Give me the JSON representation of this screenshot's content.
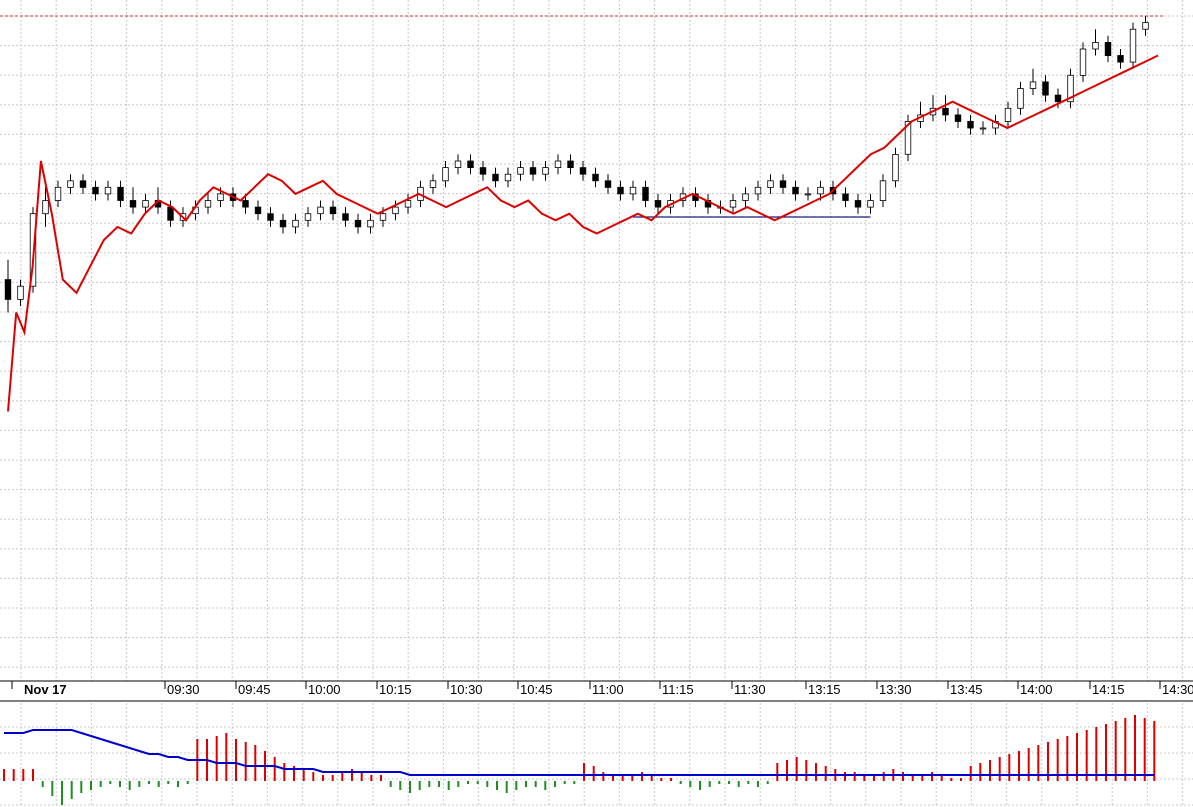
{
  "chart_data": {
    "type": "candlestick",
    "grid": true,
    "colors": {
      "candle_up_fill": "#ffffff",
      "candle_down_fill": "#000000",
      "candle_outline": "#000000",
      "overlay_line": "#dd0000",
      "support_line": "#1a1a80",
      "high_marker": "#cc3333",
      "volume_up": "#dd0000",
      "volume_down": "#228b22",
      "volume_avg": "#0000cc",
      "grid": "#c8c8c8"
    },
    "x_tick_labels": [
      "Nov 17",
      "09:30",
      "09:45",
      "10:00",
      "10:15",
      "10:30",
      "10:45",
      "11:00",
      "11:15",
      "11:30",
      "13:15",
      "13:30",
      "13:45",
      "14:00",
      "14:15",
      "14:30"
    ],
    "price_range": [
      0,
      100
    ],
    "price_candles": [
      [
        0,
        60,
        63,
        55,
        57
      ],
      [
        1,
        57,
        60,
        56,
        59
      ],
      [
        2,
        59,
        71,
        58,
        70
      ],
      [
        3,
        70,
        74,
        68,
        72
      ],
      [
        4,
        72,
        75,
        71,
        74
      ],
      [
        5,
        74,
        76,
        73,
        75
      ],
      [
        6,
        75,
        76,
        73,
        74
      ],
      [
        7,
        74,
        75,
        72,
        73
      ],
      [
        8,
        73,
        75,
        72,
        74
      ],
      [
        9,
        74,
        75,
        71,
        72
      ],
      [
        10,
        72,
        74,
        70,
        71
      ],
      [
        11,
        71,
        73,
        70,
        72
      ],
      [
        12,
        72,
        74,
        70,
        71
      ],
      [
        13,
        71,
        72,
        68,
        69
      ],
      [
        14,
        69,
        71,
        68,
        70
      ],
      [
        15,
        70,
        72,
        69,
        71
      ],
      [
        16,
        71,
        73,
        70,
        72
      ],
      [
        17,
        72,
        74,
        71,
        73
      ],
      [
        18,
        73,
        74,
        71,
        72
      ],
      [
        19,
        72,
        73,
        70,
        71
      ],
      [
        20,
        71,
        72,
        69,
        70
      ],
      [
        21,
        70,
        71,
        68,
        69
      ],
      [
        22,
        69,
        70,
        67,
        68
      ],
      [
        23,
        68,
        70,
        67,
        69
      ],
      [
        24,
        69,
        71,
        68,
        70
      ],
      [
        25,
        70,
        72,
        69,
        71
      ],
      [
        26,
        71,
        72,
        69,
        70
      ],
      [
        27,
        70,
        71,
        68,
        69
      ],
      [
        28,
        69,
        70,
        67,
        68
      ],
      [
        29,
        68,
        70,
        67,
        69
      ],
      [
        30,
        69,
        71,
        68,
        70
      ],
      [
        31,
        70,
        72,
        69,
        71
      ],
      [
        32,
        71,
        73,
        70,
        72
      ],
      [
        33,
        72,
        75,
        71,
        74
      ],
      [
        34,
        74,
        76,
        73,
        75
      ],
      [
        35,
        75,
        78,
        74,
        77
      ],
      [
        36,
        77,
        79,
        76,
        78
      ],
      [
        37,
        78,
        79,
        76,
        77
      ],
      [
        38,
        77,
        78,
        75,
        76
      ],
      [
        39,
        76,
        77,
        74,
        75
      ],
      [
        40,
        75,
        77,
        74,
        76
      ],
      [
        41,
        76,
        78,
        75,
        77
      ],
      [
        42,
        77,
        78,
        75,
        76
      ],
      [
        43,
        76,
        78,
        75,
        77
      ],
      [
        44,
        77,
        79,
        76,
        78
      ],
      [
        45,
        78,
        79,
        76,
        77
      ],
      [
        46,
        77,
        78,
        75,
        76
      ],
      [
        47,
        76,
        77,
        74,
        75
      ],
      [
        48,
        75,
        76,
        73,
        74
      ],
      [
        49,
        74,
        75,
        72,
        73
      ],
      [
        50,
        73,
        75,
        72,
        74
      ],
      [
        51,
        74,
        75,
        71,
        72
      ],
      [
        52,
        72,
        73,
        70,
        71
      ],
      [
        53,
        71,
        73,
        70,
        72
      ],
      [
        54,
        72,
        74,
        71,
        73
      ],
      [
        55,
        73,
        74,
        71,
        72
      ],
      [
        56,
        72,
        73,
        70,
        71
      ],
      [
        57,
        71,
        72,
        70,
        71
      ],
      [
        58,
        71,
        73,
        70,
        72
      ],
      [
        59,
        72,
        74,
        71,
        73
      ],
      [
        60,
        73,
        75,
        72,
        74
      ],
      [
        61,
        74,
        76,
        73,
        75
      ],
      [
        62,
        75,
        76,
        73,
        74
      ],
      [
        63,
        74,
        75,
        72,
        73
      ],
      [
        64,
        73,
        74,
        72,
        73
      ],
      [
        65,
        73,
        75,
        72,
        74
      ],
      [
        66,
        74,
        75,
        72,
        73
      ],
      [
        67,
        73,
        74,
        71,
        72
      ],
      [
        68,
        72,
        73,
        70,
        71
      ],
      [
        69,
        71,
        73,
        70,
        72
      ],
      [
        70,
        72,
        76,
        71,
        75
      ],
      [
        71,
        75,
        80,
        74,
        79
      ],
      [
        72,
        79,
        85,
        78,
        84
      ],
      [
        73,
        84,
        87,
        83,
        85
      ],
      [
        74,
        85,
        88,
        84,
        86
      ],
      [
        75,
        86,
        88,
        84,
        85
      ],
      [
        76,
        85,
        86,
        83,
        84
      ],
      [
        77,
        84,
        85,
        82,
        83
      ],
      [
        78,
        83,
        84,
        82,
        83
      ],
      [
        79,
        83,
        85,
        82,
        84
      ],
      [
        80,
        84,
        87,
        83,
        86
      ],
      [
        81,
        86,
        90,
        85,
        89
      ],
      [
        82,
        89,
        92,
        88,
        90
      ],
      [
        83,
        90,
        91,
        87,
        88
      ],
      [
        84,
        88,
        89,
        86,
        87
      ],
      [
        85,
        87,
        92,
        86,
        91
      ],
      [
        86,
        91,
        96,
        90,
        95
      ],
      [
        87,
        95,
        98,
        94,
        96
      ],
      [
        88,
        96,
        97,
        93,
        94
      ],
      [
        89,
        94,
        95,
        92,
        93
      ],
      [
        90,
        93,
        99,
        92,
        98
      ],
      [
        91,
        98,
        100,
        97,
        99
      ]
    ],
    "overlay_line": [
      [
        0,
        40
      ],
      [
        0.3,
        55
      ],
      [
        0.6,
        52
      ],
      [
        0.9,
        62
      ],
      [
        1.2,
        78
      ],
      [
        1.6,
        70
      ],
      [
        2,
        60
      ],
      [
        2.5,
        58
      ],
      [
        3,
        62
      ],
      [
        3.5,
        66
      ],
      [
        4,
        68
      ],
      [
        4.5,
        67
      ],
      [
        5,
        70
      ],
      [
        5.5,
        72
      ],
      [
        6,
        71
      ],
      [
        6.5,
        69
      ],
      [
        7,
        72
      ],
      [
        7.5,
        74
      ],
      [
        8,
        73
      ],
      [
        8.5,
        72
      ],
      [
        9,
        74
      ],
      [
        9.5,
        76
      ],
      [
        10,
        75
      ],
      [
        10.5,
        73
      ],
      [
        11,
        74
      ],
      [
        11.5,
        75
      ],
      [
        12,
        73
      ],
      [
        12.5,
        72
      ],
      [
        13,
        71
      ],
      [
        13.5,
        70
      ],
      [
        14,
        71
      ],
      [
        14.5,
        72
      ],
      [
        15,
        73
      ],
      [
        15.5,
        72
      ],
      [
        16,
        71
      ],
      [
        16.5,
        72
      ],
      [
        17,
        73
      ],
      [
        17.5,
        74
      ],
      [
        18,
        72
      ],
      [
        18.5,
        71
      ],
      [
        19,
        72
      ],
      [
        19.5,
        70
      ],
      [
        20,
        69
      ],
      [
        20.5,
        70
      ],
      [
        21,
        68
      ],
      [
        21.5,
        67
      ],
      [
        22,
        68
      ],
      [
        22.5,
        69
      ],
      [
        23,
        70
      ],
      [
        23.5,
        69
      ],
      [
        24,
        71
      ],
      [
        24.5,
        72
      ],
      [
        25,
        73
      ],
      [
        25.5,
        72
      ],
      [
        26,
        71
      ],
      [
        26.5,
        70
      ],
      [
        27,
        71
      ],
      [
        27.5,
        70
      ],
      [
        28,
        69
      ],
      [
        28.5,
        70
      ],
      [
        29,
        71
      ],
      [
        29.5,
        72
      ],
      [
        30,
        73
      ],
      [
        30.5,
        75
      ],
      [
        31,
        77
      ],
      [
        31.5,
        79
      ],
      [
        32,
        80
      ],
      [
        32.5,
        82
      ],
      [
        33,
        84
      ],
      [
        33.5,
        85
      ],
      [
        34,
        86
      ],
      [
        34.5,
        87
      ],
      [
        35,
        86
      ],
      [
        35.5,
        85
      ],
      [
        36,
        84
      ],
      [
        36.5,
        83
      ],
      [
        37,
        84
      ],
      [
        37.5,
        85
      ],
      [
        38,
        86
      ],
      [
        38.5,
        87
      ],
      [
        39,
        88
      ],
      [
        39.5,
        89
      ],
      [
        40,
        90
      ],
      [
        40.5,
        91
      ],
      [
        41,
        92
      ],
      [
        41.5,
        93
      ],
      [
        42,
        94
      ]
    ],
    "support_line": {
      "from": 50,
      "to": 69,
      "y": 69.5
    },
    "volume_range": [
      -6,
      22
    ],
    "volume_bars": [
      4,
      4,
      4,
      4,
      -2,
      -5,
      -8,
      -6,
      -4,
      -3,
      -2,
      -1,
      -2,
      -3,
      -2,
      -1,
      -2,
      -1,
      -2,
      -1,
      14,
      14,
      15,
      16,
      14,
      13,
      12,
      10,
      8,
      6,
      5,
      4,
      3,
      2,
      2,
      3,
      4,
      3,
      2,
      2,
      -2,
      -3,
      -4,
      -3,
      -2,
      -2,
      -3,
      -2,
      -1,
      -1,
      -2,
      -3,
      -4,
      -3,
      -2,
      -2,
      -3,
      -2,
      -1,
      -1,
      6,
      5,
      3,
      2,
      2,
      2,
      3,
      2,
      1,
      1,
      -1,
      -2,
      -3,
      -2,
      -1,
      -1,
      -2,
      -1,
      -2,
      -1,
      6,
      7,
      8,
      7,
      6,
      5,
      4,
      3,
      3,
      2,
      2,
      3,
      4,
      3,
      2,
      2,
      3,
      2,
      1,
      1,
      5,
      6,
      7,
      8,
      9,
      10,
      11,
      12,
      13,
      14,
      15,
      16,
      17,
      18,
      19,
      20,
      21,
      22,
      21,
      20
    ],
    "volume_avg": [
      16,
      16,
      16,
      17,
      17,
      17,
      17,
      17,
      16,
      15,
      14,
      13,
      12,
      11,
      10,
      9,
      9,
      8,
      8,
      7,
      7,
      7,
      6,
      6,
      6,
      5,
      5,
      5,
      5,
      4,
      4,
      4,
      4,
      3,
      3,
      3,
      3,
      3,
      3,
      3,
      3,
      3,
      2,
      2,
      2,
      2,
      2,
      2,
      2,
      2,
      2,
      2,
      2,
      2,
      2,
      2,
      2,
      2,
      2,
      2,
      2,
      2,
      2,
      2,
      2,
      2,
      2,
      2,
      2,
      2,
      2,
      2,
      2,
      2,
      2,
      2,
      2,
      2,
      2,
      2,
      2,
      2,
      2,
      2,
      2,
      2,
      2,
      2,
      2,
      2,
      2,
      2,
      2,
      2,
      2,
      2,
      2,
      2,
      2,
      2,
      2,
      2,
      2,
      2,
      2,
      2,
      2,
      2,
      2,
      2,
      2,
      2,
      2,
      2,
      2,
      2,
      2,
      2,
      2,
      2
    ]
  }
}
